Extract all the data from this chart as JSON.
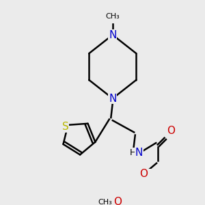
{
  "bg_color": "#ebebeb",
  "atom_colors": {
    "C": "#000000",
    "N": "#0000cc",
    "O": "#cc0000",
    "S": "#b8b800",
    "H": "#000000"
  },
  "bond_color": "#000000",
  "bond_width": 1.8,
  "figsize": [
    3.0,
    3.0
  ],
  "dpi": 100
}
